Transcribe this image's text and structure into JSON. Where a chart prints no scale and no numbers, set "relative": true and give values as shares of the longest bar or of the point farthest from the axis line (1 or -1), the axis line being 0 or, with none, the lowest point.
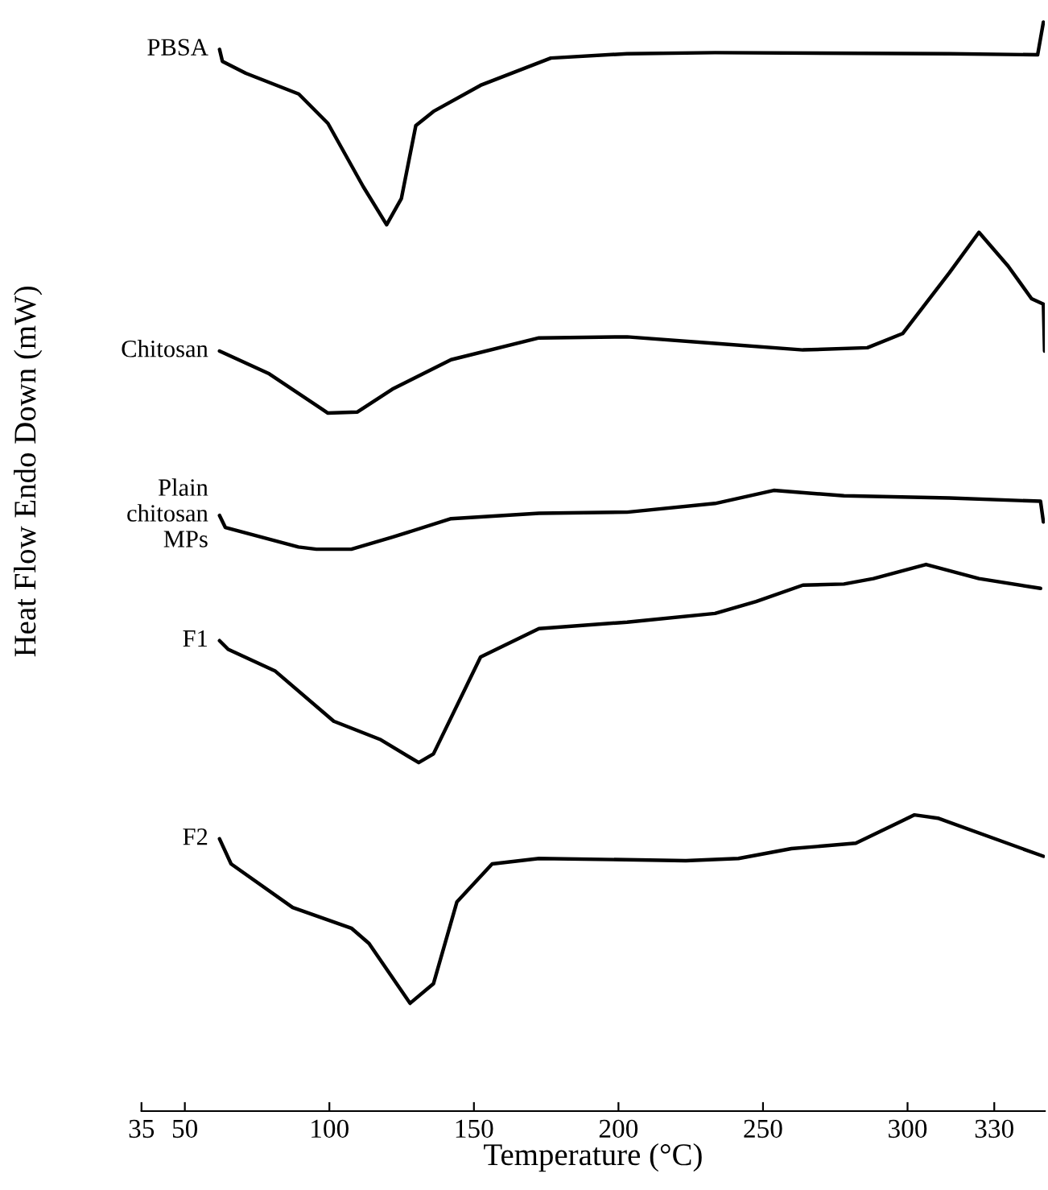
{
  "chart_data": {
    "type": "line",
    "relative": true,
    "xlabel": "Temperature (°C)",
    "ylabel": "Heat Flow Endo Down (mW)",
    "xlim": [
      35,
      347.5
    ],
    "xticks": [
      35,
      50,
      100,
      150,
      200,
      250,
      300,
      330
    ],
    "marker": "none",
    "line_style": "solid",
    "series": [
      {
        "name": "PBSA",
        "color": "#000000",
        "x": [
          62.0,
          63.0,
          71.1,
          89.4,
          99.5,
          111.7,
          119.8,
          124.9,
          129.9,
          136.0,
          152.3,
          176.6,
          203.0,
          233.4,
          314.5,
          345.0,
          347.0
        ],
        "values": [
          0.975,
          0.964,
          0.953,
          0.934,
          0.907,
          0.849,
          0.814,
          0.838,
          0.905,
          0.918,
          0.942,
          0.967,
          0.971,
          0.972,
          0.971,
          0.97,
          1.0
        ]
      },
      {
        "name": "Chitosan",
        "color": "#000000",
        "x": [
          62.0,
          79.2,
          99.5,
          109.7,
          121.8,
          142.1,
          172.5,
          203.0,
          233.4,
          263.8,
          286.1,
          298.3,
          314.5,
          324.7,
          334.8,
          342.9,
          347.0,
          347.4
        ],
        "values": [
          0.698,
          0.677,
          0.641,
          0.642,
          0.663,
          0.69,
          0.71,
          0.711,
          0.705,
          0.699,
          0.701,
          0.714,
          0.77,
          0.807,
          0.776,
          0.746,
          0.741,
          0.698
        ]
      },
      {
        "name": "Plain\nchitosan\nMPs",
        "color": "#000000",
        "x": [
          62.0,
          64.0,
          89.3,
          95.5,
          107.6,
          121.8,
          142.1,
          172.5,
          203.0,
          233.4,
          253.7,
          278.0,
          314.5,
          346.0,
          347.0
        ],
        "values": [
          0.547,
          0.536,
          0.518,
          0.516,
          0.516,
          0.527,
          0.544,
          0.549,
          0.55,
          0.558,
          0.57,
          0.565,
          0.563,
          0.56,
          0.541
        ]
      },
      {
        "name": "F1",
        "color": "#000000",
        "x": [
          62.0,
          65.0,
          81.3,
          101.5,
          117.8,
          130.9,
          136.0,
          152.3,
          172.5,
          203.0,
          233.4,
          247.6,
          263.8,
          278.0,
          288.2,
          306.4,
          324.7,
          346.0
        ],
        "values": [
          0.432,
          0.424,
          0.404,
          0.358,
          0.341,
          0.32,
          0.328,
          0.417,
          0.443,
          0.449,
          0.457,
          0.468,
          0.483,
          0.484,
          0.489,
          0.502,
          0.489,
          0.48
        ]
      },
      {
        "name": "F2",
        "color": "#000000",
        "x": [
          62.0,
          66.0,
          87.3,
          107.6,
          113.7,
          127.9,
          136.0,
          144.1,
          156.3,
          172.5,
          223.3,
          241.5,
          259.8,
          282.1,
          302.4,
          310.5,
          347.0
        ],
        "values": [
          0.25,
          0.227,
          0.187,
          0.168,
          0.154,
          0.099,
          0.117,
          0.192,
          0.227,
          0.232,
          0.23,
          0.232,
          0.241,
          0.246,
          0.272,
          0.269,
          0.234
        ]
      }
    ]
  }
}
